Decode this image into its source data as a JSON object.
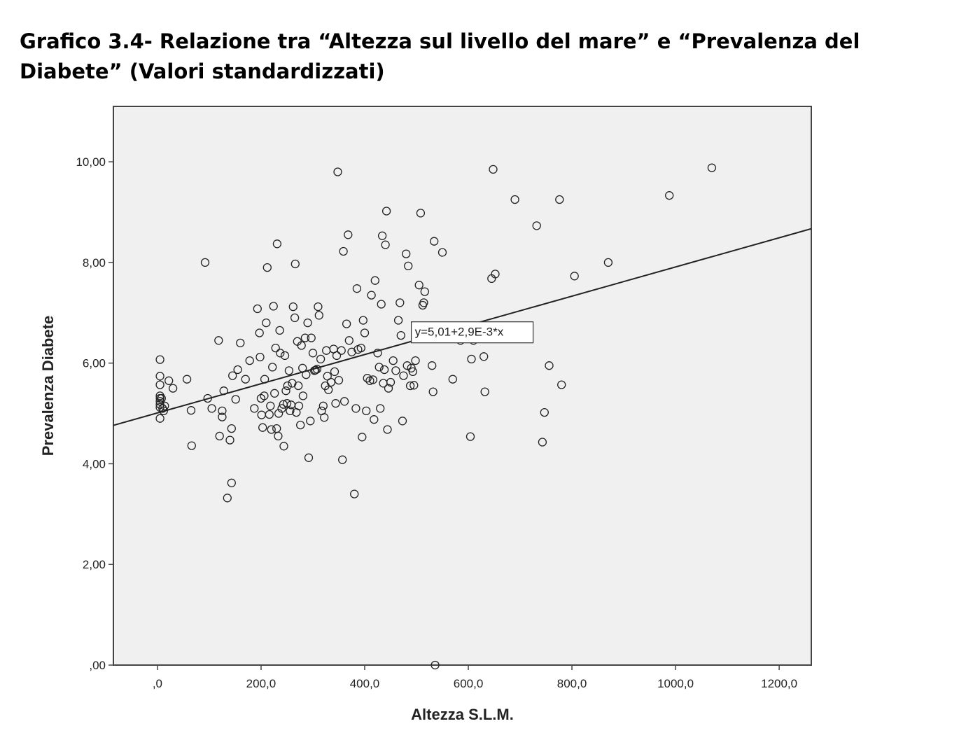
{
  "title": "Grafico 3.4- Relazione tra “Altezza sul livello del mare” e “Prevalenza del Diabete” (Valori standardizzati)",
  "chart_data": {
    "type": "scatter",
    "title": "Grafico 3.4- Relazione tra “Altezza sul livello del mare” e “Prevalenza del Diabete” (Valori standardizzati)",
    "xlabel": "Altezza S.L.M.",
    "ylabel": "Prevalenza Diabete",
    "xlim": [
      -85,
      1262
    ],
    "ylim": [
      0,
      11.1
    ],
    "xticks": [
      0,
      200,
      400,
      600,
      800,
      1000,
      1200
    ],
    "xtick_labels": [
      ",0",
      "200,0",
      "400,0",
      "600,0",
      "800,0",
      "1000,0",
      "1200,0"
    ],
    "yticks": [
      0,
      2,
      4,
      6,
      8,
      10
    ],
    "ytick_labels": [
      ",00",
      "2,00",
      "4,00",
      "6,00",
      "8,00",
      "10,00"
    ],
    "grid": false,
    "background": "#f0f0f0",
    "fit_line": {
      "intercept": 5.01,
      "slope": 0.0029,
      "label": "y=5,01+2,9E-3*x"
    },
    "points": [
      [
        5,
        6.07
      ],
      [
        5,
        5.74
      ],
      [
        5,
        5.57
      ],
      [
        5,
        5.35
      ],
      [
        5,
        5.3
      ],
      [
        5,
        5.24
      ],
      [
        5,
        5.18
      ],
      [
        5,
        5.12
      ],
      [
        5,
        4.9
      ],
      [
        8,
        5.3
      ],
      [
        10,
        5.1
      ],
      [
        12,
        5.05
      ],
      [
        14,
        5.15
      ],
      [
        22,
        5.65
      ],
      [
        30,
        5.5
      ],
      [
        57,
        5.68
      ],
      [
        65,
        5.06
      ],
      [
        66,
        4.36
      ],
      [
        92,
        8.0
      ],
      [
        97,
        5.3
      ],
      [
        105,
        5.1
      ],
      [
        118,
        6.45
      ],
      [
        120,
        4.55
      ],
      [
        125,
        5.05
      ],
      [
        125,
        4.93
      ],
      [
        128,
        5.45
      ],
      [
        135,
        3.32
      ],
      [
        140,
        4.47
      ],
      [
        143,
        3.62
      ],
      [
        143,
        4.7
      ],
      [
        145,
        5.75
      ],
      [
        151,
        5.28
      ],
      [
        155,
        5.87
      ],
      [
        160,
        6.4
      ],
      [
        170,
        5.68
      ],
      [
        178,
        6.05
      ],
      [
        187,
        5.1
      ],
      [
        193,
        7.08
      ],
      [
        197,
        6.6
      ],
      [
        198,
        6.12
      ],
      [
        200,
        5.3
      ],
      [
        201,
        4.97
      ],
      [
        203,
        4.72
      ],
      [
        206,
        5.35
      ],
      [
        207,
        5.68
      ],
      [
        210,
        6.8
      ],
      [
        212,
        7.9
      ],
      [
        216,
        4.98
      ],
      [
        218,
        5.15
      ],
      [
        220,
        4.68
      ],
      [
        222,
        5.92
      ],
      [
        224,
        7.13
      ],
      [
        226,
        5.4
      ],
      [
        228,
        6.3
      ],
      [
        230,
        4.7
      ],
      [
        231,
        8.37
      ],
      [
        233,
        4.55
      ],
      [
        234,
        5.0
      ],
      [
        236,
        6.65
      ],
      [
        237,
        6.2
      ],
      [
        240,
        5.1
      ],
      [
        243,
        5.18
      ],
      [
        244,
        4.35
      ],
      [
        246,
        6.15
      ],
      [
        248,
        5.45
      ],
      [
        250,
        5.2
      ],
      [
        251,
        5.55
      ],
      [
        254,
        5.85
      ],
      [
        256,
        5.05
      ],
      [
        258,
        5.17
      ],
      [
        260,
        5.6
      ],
      [
        262,
        7.12
      ],
      [
        265,
        6.9
      ],
      [
        266,
        7.97
      ],
      [
        268,
        5.02
      ],
      [
        270,
        6.43
      ],
      [
        272,
        5.55
      ],
      [
        273,
        5.15
      ],
      [
        276,
        4.77
      ],
      [
        278,
        6.35
      ],
      [
        280,
        5.9
      ],
      [
        281,
        5.35
      ],
      [
        285,
        6.5
      ],
      [
        287,
        5.77
      ],
      [
        290,
        6.8
      ],
      [
        292,
        4.12
      ],
      [
        295,
        4.85
      ],
      [
        297,
        6.5
      ],
      [
        300,
        6.2
      ],
      [
        303,
        5.85
      ],
      [
        305,
        5.86
      ],
      [
        308,
        5.88
      ],
      [
        310,
        7.12
      ],
      [
        312,
        6.95
      ],
      [
        315,
        6.08
      ],
      [
        317,
        5.05
      ],
      [
        320,
        5.15
      ],
      [
        322,
        4.92
      ],
      [
        324,
        5.55
      ],
      [
        326,
        6.25
      ],
      [
        328,
        5.74
      ],
      [
        330,
        5.47
      ],
      [
        335,
        5.62
      ],
      [
        340,
        6.28
      ],
      [
        342,
        5.83
      ],
      [
        344,
        5.2
      ],
      [
        346,
        6.15
      ],
      [
        348,
        9.8
      ],
      [
        350,
        5.66
      ],
      [
        355,
        6.25
      ],
      [
        357,
        4.08
      ],
      [
        359,
        8.22
      ],
      [
        361,
        5.24
      ],
      [
        365,
        6.78
      ],
      [
        368,
        8.55
      ],
      [
        370,
        6.45
      ],
      [
        375,
        6.22
      ],
      [
        380,
        3.4
      ],
      [
        383,
        5.1
      ],
      [
        385,
        7.48
      ],
      [
        387,
        6.27
      ],
      [
        393,
        6.3
      ],
      [
        395,
        4.53
      ],
      [
        397,
        6.85
      ],
      [
        400,
        6.6
      ],
      [
        403,
        5.05
      ],
      [
        405,
        5.7
      ],
      [
        410,
        5.65
      ],
      [
        413,
        7.35
      ],
      [
        416,
        5.67
      ],
      [
        418,
        4.88
      ],
      [
        420,
        7.64
      ],
      [
        425,
        6.2
      ],
      [
        428,
        5.92
      ],
      [
        430,
        5.1
      ],
      [
        432,
        7.17
      ],
      [
        434,
        8.53
      ],
      [
        436,
        5.6
      ],
      [
        438,
        5.87
      ],
      [
        440,
        8.35
      ],
      [
        442,
        9.02
      ],
      [
        444,
        4.68
      ],
      [
        446,
        5.5
      ],
      [
        450,
        5.62
      ],
      [
        455,
        6.05
      ],
      [
        460,
        5.85
      ],
      [
        465,
        6.85
      ],
      [
        468,
        7.2
      ],
      [
        470,
        6.55
      ],
      [
        473,
        4.85
      ],
      [
        475,
        5.75
      ],
      [
        480,
        8.17
      ],
      [
        482,
        5.95
      ],
      [
        484,
        7.93
      ],
      [
        488,
        5.55
      ],
      [
        490,
        5.9
      ],
      [
        493,
        5.83
      ],
      [
        495,
        5.56
      ],
      [
        498,
        6.05
      ],
      [
        505,
        7.55
      ],
      [
        508,
        8.98
      ],
      [
        512,
        7.15
      ],
      [
        514,
        7.2
      ],
      [
        516,
        7.42
      ],
      [
        520,
        6.65
      ],
      [
        530,
        5.95
      ],
      [
        532,
        5.43
      ],
      [
        534,
        8.42
      ],
      [
        536,
        0.0
      ],
      [
        550,
        8.2
      ],
      [
        560,
        6.52
      ],
      [
        570,
        5.68
      ],
      [
        585,
        6.45
      ],
      [
        600,
        6.55
      ],
      [
        604,
        4.54
      ],
      [
        606,
        6.08
      ],
      [
        610,
        6.45
      ],
      [
        630,
        6.13
      ],
      [
        632,
        5.43
      ],
      [
        645,
        7.68
      ],
      [
        648,
        9.85
      ],
      [
        652,
        7.77
      ],
      [
        660,
        6.52
      ],
      [
        690,
        9.25
      ],
      [
        732,
        8.73
      ],
      [
        743,
        4.43
      ],
      [
        747,
        5.02
      ],
      [
        756,
        5.95
      ],
      [
        776,
        9.25
      ],
      [
        780,
        5.57
      ],
      [
        805,
        7.73
      ],
      [
        870,
        8.0
      ],
      [
        988,
        9.33
      ],
      [
        1070,
        9.88
      ]
    ]
  }
}
